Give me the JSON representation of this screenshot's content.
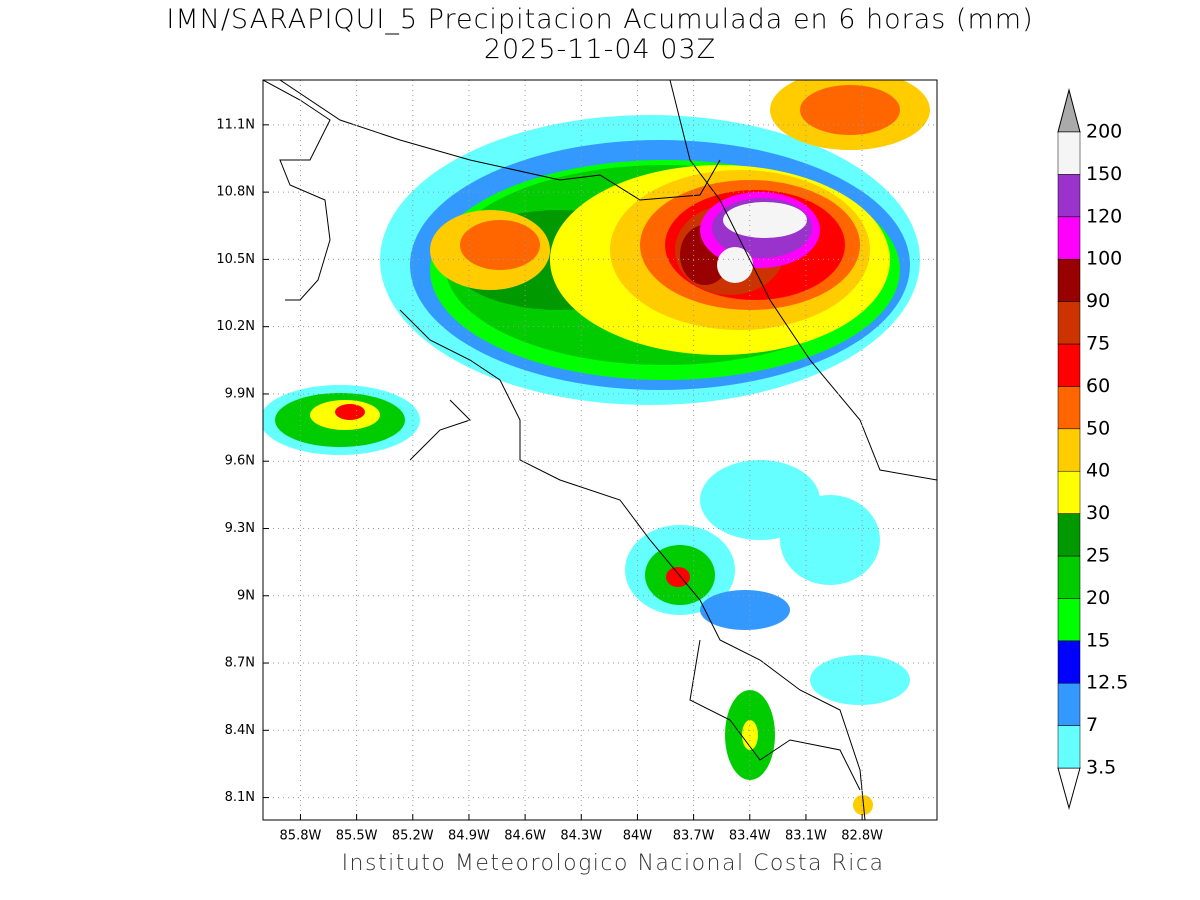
{
  "title": "IMN/SARAPIQUI_5 Precipitacion Acumulada en 6 horas (mm)",
  "subtitle": "2025-11-04 03Z",
  "footer": "Instituto Meteorologico Nacional Costa Rica",
  "map": {
    "xlim": [
      -86.0,
      -82.4
    ],
    "ylim": [
      8.0,
      11.3
    ],
    "xticks": [
      {
        "value": -85.8,
        "label": "85.8W"
      },
      {
        "value": -85.5,
        "label": "85.5W"
      },
      {
        "value": -85.2,
        "label": "85.2W"
      },
      {
        "value": -84.9,
        "label": "84.9W"
      },
      {
        "value": -84.6,
        "label": "84.6W"
      },
      {
        "value": -84.3,
        "label": "84.3W"
      },
      {
        "value": -84.0,
        "label": "84W"
      },
      {
        "value": -83.7,
        "label": "83.7W"
      },
      {
        "value": -83.4,
        "label": "83.4W"
      },
      {
        "value": -83.1,
        "label": "83.1W"
      },
      {
        "value": -82.8,
        "label": "82.8W"
      }
    ],
    "yticks": [
      {
        "value": 11.1,
        "label": "11.1N"
      },
      {
        "value": 10.8,
        "label": "10.8N"
      },
      {
        "value": 10.5,
        "label": "10.5N"
      },
      {
        "value": 10.2,
        "label": "10.2N"
      },
      {
        "value": 9.9,
        "label": "9.9N"
      },
      {
        "value": 9.6,
        "label": "9.6N"
      },
      {
        "value": 9.3,
        "label": "9.3N"
      },
      {
        "value": 9.0,
        "label": "9N"
      },
      {
        "value": 8.7,
        "label": "8.7N"
      },
      {
        "value": 8.4,
        "label": "8.4N"
      },
      {
        "value": 8.1,
        "label": "8.1N"
      }
    ],
    "grid": true
  },
  "colorbar": {
    "levels": [
      3.5,
      7,
      12.5,
      15,
      20,
      25,
      30,
      40,
      50,
      60,
      75,
      90,
      100,
      120,
      150,
      200
    ],
    "colors": [
      "#66ffff",
      "#3399ff",
      "#0000ff",
      "#00ff00",
      "#00cc00",
      "#009900",
      "#ffff00",
      "#ffcc00",
      "#ff6600",
      "#ff0000",
      "#cc3300",
      "#990000",
      "#ff00ff",
      "#9933cc",
      "#f5f5f5"
    ],
    "under_color": "#ffffff",
    "over_color": "#aaaaaa"
  }
}
